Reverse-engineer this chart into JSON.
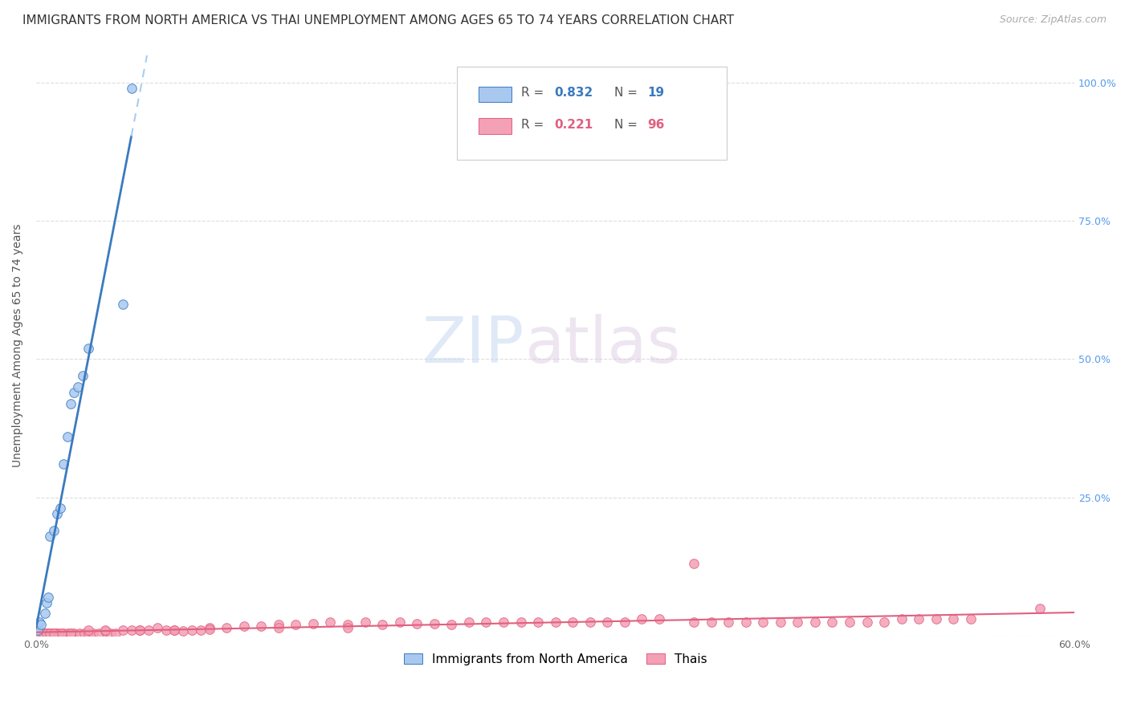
{
  "title": "IMMIGRANTS FROM NORTH AMERICA VS THAI UNEMPLOYMENT AMONG AGES 65 TO 74 YEARS CORRELATION CHART",
  "source": "Source: ZipAtlas.com",
  "ylabel": "Unemployment Among Ages 65 to 74 years",
  "xlim": [
    0.0,
    0.6
  ],
  "ylim": [
    0.0,
    1.05
  ],
  "background_color": "#ffffff",
  "grid_color": "#dddddd",
  "blue_color": "#a8c8f0",
  "pink_color": "#f4a0b5",
  "blue_line_color": "#3a7abf",
  "pink_line_color": "#e06080",
  "blue_r": "0.832",
  "blue_n": "19",
  "pink_r": "0.221",
  "pink_n": "96",
  "legend_label_blue": "Immigrants from North America",
  "legend_label_pink": "Thais",
  "watermark_zip": "ZIP",
  "watermark_atlas": "atlas",
  "blue_scatter_x": [
    0.001,
    0.002,
    0.003,
    0.005,
    0.006,
    0.007,
    0.008,
    0.01,
    0.012,
    0.014,
    0.016,
    0.018,
    0.02,
    0.022,
    0.024,
    0.027,
    0.03,
    0.05,
    0.055
  ],
  "blue_scatter_y": [
    0.01,
    0.025,
    0.02,
    0.04,
    0.06,
    0.07,
    0.18,
    0.19,
    0.22,
    0.23,
    0.31,
    0.36,
    0.42,
    0.44,
    0.45,
    0.47,
    0.52,
    0.6,
    0.99
  ],
  "pink_scatter_x": [
    0.001,
    0.002,
    0.003,
    0.004,
    0.005,
    0.006,
    0.007,
    0.008,
    0.009,
    0.01,
    0.011,
    0.012,
    0.013,
    0.015,
    0.016,
    0.018,
    0.02,
    0.022,
    0.025,
    0.028,
    0.03,
    0.033,
    0.036,
    0.04,
    0.043,
    0.046,
    0.05,
    0.055,
    0.06,
    0.065,
    0.07,
    0.075,
    0.08,
    0.085,
    0.09,
    0.095,
    0.1,
    0.11,
    0.12,
    0.13,
    0.14,
    0.15,
    0.16,
    0.17,
    0.18,
    0.19,
    0.2,
    0.21,
    0.22,
    0.23,
    0.24,
    0.25,
    0.26,
    0.27,
    0.28,
    0.29,
    0.3,
    0.31,
    0.32,
    0.33,
    0.34,
    0.35,
    0.36,
    0.38,
    0.39,
    0.4,
    0.41,
    0.42,
    0.43,
    0.44,
    0.45,
    0.46,
    0.47,
    0.48,
    0.49,
    0.5,
    0.51,
    0.52,
    0.53,
    0.54,
    0.002,
    0.004,
    0.006,
    0.008,
    0.01,
    0.015,
    0.02,
    0.03,
    0.04,
    0.06,
    0.08,
    0.1,
    0.14,
    0.18,
    0.38,
    0.58
  ],
  "pink_scatter_y": [
    0.005,
    0.005,
    0.005,
    0.005,
    0.005,
    0.005,
    0.005,
    0.005,
    0.005,
    0.005,
    0.005,
    0.005,
    0.005,
    0.005,
    0.005,
    0.005,
    0.005,
    0.005,
    0.005,
    0.005,
    0.005,
    0.005,
    0.005,
    0.008,
    0.005,
    0.005,
    0.01,
    0.01,
    0.01,
    0.01,
    0.015,
    0.01,
    0.01,
    0.008,
    0.01,
    0.01,
    0.015,
    0.015,
    0.018,
    0.018,
    0.02,
    0.02,
    0.022,
    0.025,
    0.02,
    0.025,
    0.02,
    0.025,
    0.022,
    0.022,
    0.02,
    0.025,
    0.025,
    0.025,
    0.025,
    0.025,
    0.025,
    0.025,
    0.025,
    0.025,
    0.025,
    0.03,
    0.03,
    0.025,
    0.025,
    0.025,
    0.025,
    0.025,
    0.025,
    0.025,
    0.025,
    0.025,
    0.025,
    0.025,
    0.025,
    0.03,
    0.03,
    0.03,
    0.03,
    0.03,
    0.005,
    0.005,
    0.005,
    0.005,
    0.005,
    0.005,
    0.005,
    0.01,
    0.01,
    0.01,
    0.01,
    0.012,
    0.015,
    0.015,
    0.13,
    0.05
  ],
  "title_fontsize": 11,
  "source_fontsize": 9,
  "axis_label_fontsize": 10,
  "tick_fontsize": 9,
  "legend_fontsize": 11
}
